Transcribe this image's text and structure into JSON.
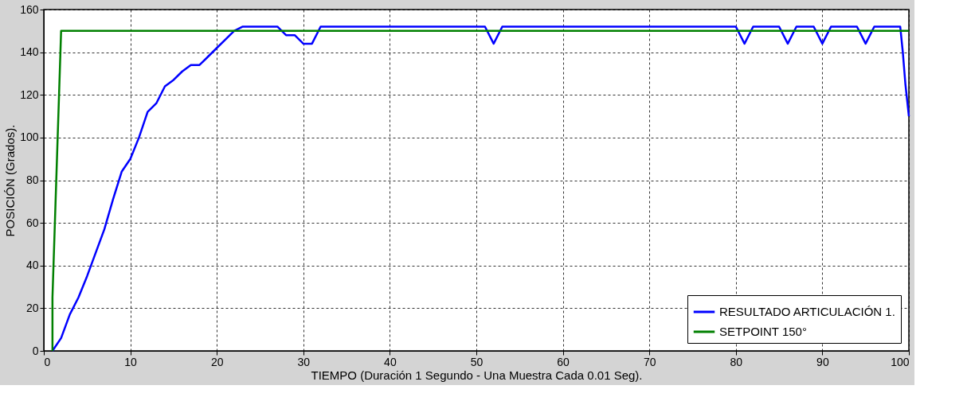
{
  "chart_data": {
    "type": "line",
    "xlabel": "TIEMPO (Duración 1 Segundo - Una Muestra Cada 0.01 Seg).",
    "ylabel": "POSICIÓN (Grados).",
    "xlim": [
      0,
      100
    ],
    "xticks": [
      0,
      10,
      20,
      30,
      40,
      50,
      60,
      70,
      80,
      90,
      100
    ],
    "ylim": [
      0,
      160
    ],
    "yticks": [
      0,
      20,
      40,
      60,
      80,
      100,
      120,
      140,
      160
    ],
    "grid": true,
    "legend": "bottom right",
    "line_style": "solid",
    "marker": "none",
    "series": [
      {
        "name": "RESULTADO ARTICULACIÓN 1.",
        "color": "#0000ff",
        "x": [
          1,
          2,
          3,
          4,
          5,
          6,
          7,
          8,
          9,
          10,
          11,
          12,
          13,
          14,
          15,
          16,
          17,
          18,
          19,
          20,
          21,
          22,
          23,
          27,
          28,
          29,
          30,
          31,
          32,
          51,
          52,
          53,
          80,
          81,
          82,
          85,
          86,
          87,
          89,
          90,
          91,
          94,
          95,
          96,
          99,
          99.3,
          99.6,
          100
        ],
        "values": [
          0,
          6,
          17,
          25,
          35,
          46,
          57,
          71,
          84,
          90,
          100,
          112,
          116,
          124,
          127,
          131,
          134,
          134,
          138,
          142,
          146,
          150,
          152,
          152,
          148,
          148,
          144,
          144,
          152,
          152,
          144,
          152,
          152,
          144,
          152,
          152,
          144,
          152,
          152,
          144,
          152,
          152,
          144,
          152,
          152,
          140,
          125,
          110
        ]
      },
      {
        "name": "SETPOINT 150°",
        "color": "#008000",
        "x": [
          1,
          1,
          1.2,
          1.4,
          1.6,
          1.8,
          2,
          100
        ],
        "values": [
          0,
          25,
          50,
          75,
          100,
          125,
          150,
          150
        ]
      }
    ]
  }
}
